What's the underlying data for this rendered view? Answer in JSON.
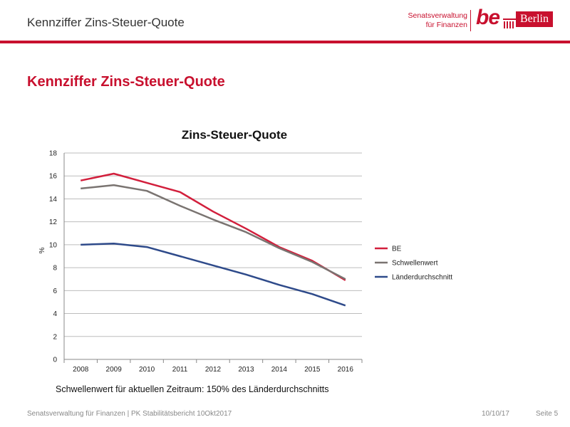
{
  "header": {
    "title": "Kennziffer  Zins-Steuer-Quote",
    "logo": {
      "line1": "Senatsverwaltung",
      "line2": "für Finanzen",
      "be": "be",
      "berlin": "Berlin"
    }
  },
  "slide": {
    "title": "Kennziffer Zins-Steuer-Quote",
    "footnote": "Schwellenwert für aktuellen Zeitraum: 150% des Länderdurchschnitts"
  },
  "footer": {
    "left": "Senatsverwaltung für Finanzen | PK Stabilitätsbericht 10Okt2017",
    "date": "10/10/17",
    "page": "Seite 5"
  },
  "colors": {
    "accent": "#c8102e",
    "be": "#d21f3c",
    "schwellenwert": "#7a7471",
    "laender": "#2e4a8a"
  },
  "chart_data": {
    "type": "line",
    "title": "Zins-Steuer-Quote",
    "xlabel": "",
    "ylabel": "%",
    "x": [
      "2008",
      "2009",
      "2010",
      "2011",
      "2012",
      "2013",
      "2014",
      "2015",
      "2016"
    ],
    "ylim": [
      0,
      18
    ],
    "yticks": [
      0,
      2,
      4,
      6,
      8,
      10,
      12,
      14,
      16,
      18
    ],
    "grid": true,
    "legend_position": "right",
    "series": [
      {
        "name": "BE",
        "color": "#d21f3c",
        "values": [
          15.6,
          16.2,
          15.4,
          14.6,
          12.9,
          11.4,
          9.8,
          8.6,
          6.9
        ]
      },
      {
        "name": "Schwellenwert",
        "color": "#7a7471",
        "values": [
          14.9,
          15.2,
          14.7,
          13.4,
          12.2,
          11.1,
          9.7,
          8.5,
          7.0
        ]
      },
      {
        "name": "Länderdurchschnitt",
        "color": "#2e4a8a",
        "values": [
          10.0,
          10.1,
          9.8,
          9.0,
          8.2,
          7.4,
          6.5,
          5.7,
          4.7
        ]
      }
    ]
  }
}
